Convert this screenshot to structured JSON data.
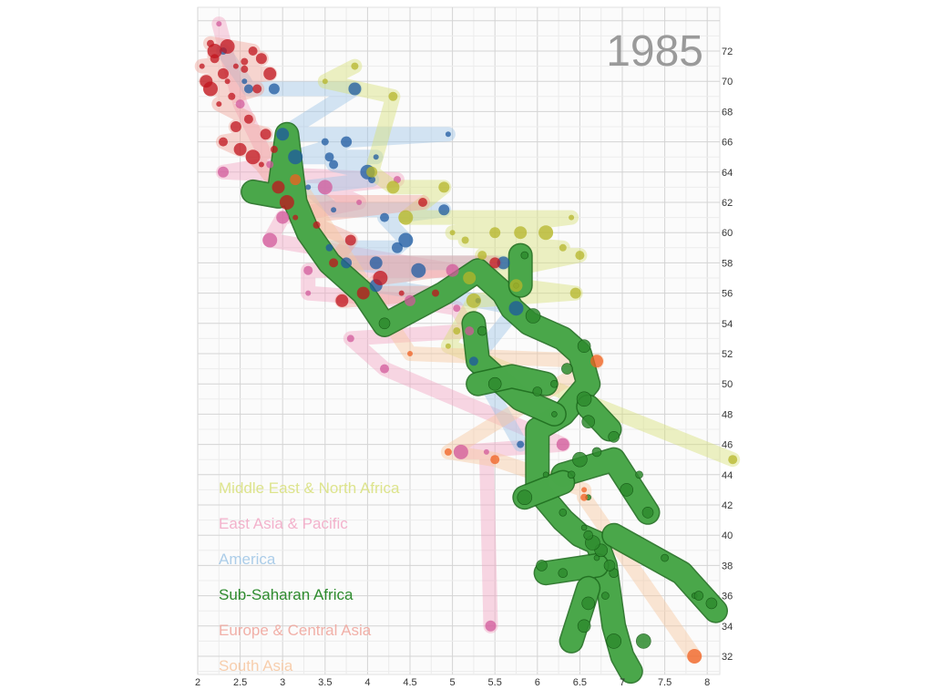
{
  "chart_data": {
    "type": "scatter",
    "title": "1985",
    "xlabel": "",
    "ylabel": "",
    "xlim": [
      2,
      8.2
    ],
    "ylim": [
      30.5,
      73
    ],
    "x_ticks": [
      "2",
      "2.5",
      "3",
      "3.5",
      "4",
      "4.5",
      "5",
      "5.5",
      "6",
      "6.5",
      "7",
      "7.5",
      "8"
    ],
    "y_ticks": [
      "32",
      "34",
      "36",
      "38",
      "40",
      "42",
      "44",
      "46",
      "48",
      "50",
      "52",
      "54",
      "56",
      "58",
      "60",
      "62",
      "64",
      "66",
      "68",
      "70",
      "72"
    ],
    "grid": true,
    "legend_position": "bottom-left",
    "legend": [
      {
        "name": "Middle East & North Africa",
        "color": "#d8e07a"
      },
      {
        "name": "East Asia & Pacific",
        "color": "#f2a6c4"
      },
      {
        "name": "America",
        "color": "#9fc6e6"
      },
      {
        "name": "Sub-Saharan Africa",
        "color": "#2e8b2e"
      },
      {
        "name": "Europe & Central Asia",
        "color": "#f0a39a"
      },
      {
        "name": "South Asia",
        "color": "#f7c7a0"
      }
    ],
    "series": [
      {
        "name": "Sub-Saharan Africa",
        "color": "#2e8b2e",
        "highlighted": true,
        "trail": [
          [
            2.65,
            62.7
          ],
          [
            2.95,
            62.4
          ],
          [
            3.05,
            66.5
          ],
          [
            3.15,
            62
          ],
          [
            3.3,
            60
          ],
          [
            3.55,
            58
          ],
          [
            3.95,
            56
          ],
          [
            4.2,
            53.9
          ],
          [
            4.9,
            56
          ],
          [
            5.3,
            57.5
          ],
          [
            5.6,
            56
          ],
          [
            5.7,
            55
          ],
          [
            5.9,
            54
          ],
          [
            6.3,
            53
          ],
          [
            6.5,
            52
          ],
          [
            6.6,
            50
          ],
          [
            6.3,
            48
          ],
          [
            6,
            47
          ],
          [
            6,
            45
          ],
          [
            6,
            43
          ],
          [
            6.3,
            41
          ],
          [
            6.5,
            40
          ],
          [
            6.7,
            39.5
          ],
          [
            6.8,
            38
          ],
          [
            6.85,
            36
          ],
          [
            6.9,
            34
          ],
          [
            7,
            32
          ],
          [
            7.1,
            31
          ]
        ],
        "branches": [
          [
            [
              5.8,
              58.5
            ],
            [
              5.8,
              56.5
            ]
          ],
          [
            [
              5.25,
              54
            ],
            [
              5.3,
              51.5
            ],
            [
              5.8,
              49
            ],
            [
              6.2,
              48
            ]
          ],
          [
            [
              6.6,
              48.5
            ],
            [
              6.85,
              47
            ]
          ],
          [
            [
              6.3,
              44
            ],
            [
              6.9,
              45
            ],
            [
              7.3,
              41.5
            ]
          ],
          [
            [
              5.3,
              50
            ],
            [
              5.7,
              50.5
            ],
            [
              6.1,
              50
            ]
          ],
          [
            [
              6.9,
              40
            ],
            [
              7.7,
              37.5
            ],
            [
              8.1,
              35
            ]
          ],
          [
            [
              6.7,
              38
            ],
            [
              6.1,
              37.5
            ]
          ],
          [
            [
              6.6,
              36.5
            ],
            [
              6.4,
              33
            ]
          ],
          [
            [
              6.3,
              43.5
            ],
            [
              5.85,
              42.5
            ]
          ]
        ],
        "points": [
          [
            7.85,
            36
          ],
          [
            7.5,
            38.5
          ],
          [
            7.9,
            36
          ],
          [
            8.05,
            35.5
          ],
          [
            6.55,
            34
          ],
          [
            6.9,
            33
          ],
          [
            6.7,
            38.5
          ],
          [
            6.8,
            36
          ],
          [
            6.9,
            37.5
          ],
          [
            6.85,
            38
          ],
          [
            6.75,
            39
          ],
          [
            6.65,
            39.5
          ],
          [
            6.55,
            40.5
          ],
          [
            6.3,
            41.5
          ],
          [
            6.6,
            40
          ],
          [
            7.3,
            41.5
          ],
          [
            7.05,
            43
          ],
          [
            6.5,
            45
          ],
          [
            6.1,
            44
          ],
          [
            6.4,
            44
          ],
          [
            6.7,
            45.5
          ],
          [
            6.9,
            46.5
          ],
          [
            6.6,
            47.5
          ],
          [
            6.55,
            49
          ],
          [
            6.2,
            48
          ],
          [
            6.2,
            50
          ],
          [
            6,
            49.5
          ],
          [
            6.35,
            51
          ],
          [
            6.55,
            52.5
          ],
          [
            5.95,
            54.5
          ],
          [
            5.75,
            56.5
          ],
          [
            5.85,
            58.5
          ],
          [
            5.35,
            53.5
          ],
          [
            4.2,
            54
          ],
          [
            5.5,
            50
          ],
          [
            5.85,
            42.5
          ],
          [
            6.6,
            42.5
          ],
          [
            7.2,
            44
          ],
          [
            6.3,
            37.5
          ],
          [
            6.05,
            38
          ],
          [
            6.6,
            35.5
          ],
          [
            7.25,
            33
          ]
        ]
      },
      {
        "name": "East Asia & Pacific",
        "color": "#d25a9b",
        "points": [
          [
            2.25,
            73.8
          ],
          [
            2.85,
            64.5
          ],
          [
            2.5,
            68.5
          ],
          [
            2.3,
            64
          ],
          [
            3,
            61
          ],
          [
            2.85,
            59.5
          ],
          [
            3.3,
            56
          ],
          [
            3.8,
            53
          ],
          [
            4.2,
            51
          ],
          [
            4.5,
            55.5
          ],
          [
            5,
            57.5
          ],
          [
            5.1,
            45.5
          ],
          [
            5.4,
            45.5
          ],
          [
            5.05,
            55
          ],
          [
            5.2,
            53.5
          ],
          [
            5.45,
            34
          ],
          [
            6.3,
            46
          ],
          [
            3.5,
            63
          ],
          [
            3.9,
            62
          ],
          [
            4.35,
            63.5
          ],
          [
            3.3,
            57.5
          ]
        ]
      },
      {
        "name": "America",
        "color": "#1e5aa0",
        "points": [
          [
            2.55,
            70
          ],
          [
            2.3,
            72
          ],
          [
            2.6,
            69.5
          ],
          [
            2.9,
            69.5
          ],
          [
            3,
            66.5
          ],
          [
            3.15,
            65
          ],
          [
            3.3,
            63
          ],
          [
            3.5,
            66
          ],
          [
            3.6,
            64.5
          ],
          [
            3.75,
            66
          ],
          [
            3.85,
            69.5
          ],
          [
            4,
            64
          ],
          [
            4.1,
            65
          ],
          [
            4.05,
            63.5
          ],
          [
            4.2,
            61
          ],
          [
            4.35,
            59
          ],
          [
            4.1,
            58
          ],
          [
            4.45,
            59.5
          ],
          [
            3.6,
            61.5
          ],
          [
            3.55,
            59
          ],
          [
            3.55,
            65
          ],
          [
            4.9,
            61.5
          ],
          [
            5.6,
            58
          ],
          [
            5.75,
            55
          ],
          [
            5.3,
            55.5
          ],
          [
            5.8,
            46
          ],
          [
            5.25,
            51.5
          ],
          [
            3.75,
            58
          ],
          [
            4.1,
            56.5
          ],
          [
            4.6,
            57.5
          ],
          [
            4.95,
            66.5
          ]
        ]
      },
      {
        "name": "Middle East & North Africa",
        "color": "#b5b52a",
        "points": [
          [
            3.5,
            70
          ],
          [
            3.85,
            71
          ],
          [
            4.3,
            69
          ],
          [
            4.05,
            64
          ],
          [
            4.3,
            63
          ],
          [
            4.45,
            61
          ],
          [
            5,
            60
          ],
          [
            5.15,
            59.5
          ],
          [
            5.35,
            58.5
          ],
          [
            5.5,
            60
          ],
          [
            5.8,
            60
          ],
          [
            6.1,
            60
          ],
          [
            6.4,
            61
          ],
          [
            6.3,
            59
          ],
          [
            6.5,
            58.5
          ],
          [
            4.9,
            63
          ],
          [
            5.2,
            57
          ],
          [
            5.25,
            55.5
          ],
          [
            4.95,
            52.5
          ],
          [
            5.05,
            53.5
          ],
          [
            8.3,
            45
          ],
          [
            6.45,
            56
          ],
          [
            5.75,
            56.5
          ]
        ]
      },
      {
        "name": "Europe & Central Asia",
        "color": "#c0141e",
        "points": [
          [
            2.05,
            71
          ],
          [
            2.15,
            72.5
          ],
          [
            2.2,
            71.5
          ],
          [
            2.3,
            70.5
          ],
          [
            2.1,
            70
          ],
          [
            2.35,
            72.3
          ],
          [
            2.45,
            71
          ],
          [
            2.55,
            71.3
          ],
          [
            2.65,
            72
          ],
          [
            2.75,
            71.5
          ],
          [
            2.85,
            70.5
          ],
          [
            2.15,
            69.5
          ],
          [
            2.25,
            68.5
          ],
          [
            2.4,
            69
          ],
          [
            2.6,
            67.5
          ],
          [
            2.8,
            66.5
          ],
          [
            2.5,
            65.5
          ],
          [
            2.65,
            65
          ],
          [
            2.75,
            64.5
          ],
          [
            2.9,
            65.5
          ],
          [
            2.3,
            66
          ],
          [
            2.45,
            67
          ],
          [
            2.95,
            63
          ],
          [
            3.05,
            62
          ],
          [
            3.15,
            61
          ],
          [
            3.4,
            60.5
          ],
          [
            3.6,
            58
          ],
          [
            3.8,
            59.5
          ],
          [
            3.95,
            56
          ],
          [
            4.15,
            57
          ],
          [
            4.4,
            56
          ],
          [
            4.8,
            56
          ],
          [
            4.65,
            62
          ],
          [
            5.5,
            58
          ],
          [
            3.7,
            55.5
          ],
          [
            2.2,
            72
          ],
          [
            2.35,
            70
          ],
          [
            2.55,
            70.8
          ],
          [
            2.7,
            69.5
          ]
        ]
      },
      {
        "name": "South Asia",
        "color": "#f06020",
        "points": [
          [
            4.5,
            52
          ],
          [
            4.95,
            45.5
          ],
          [
            5.5,
            45
          ],
          [
            3.15,
            63.5
          ],
          [
            6.7,
            51.5
          ],
          [
            7.85,
            32
          ],
          [
            6.55,
            43
          ],
          [
            6.55,
            42.5
          ]
        ]
      }
    ]
  }
}
